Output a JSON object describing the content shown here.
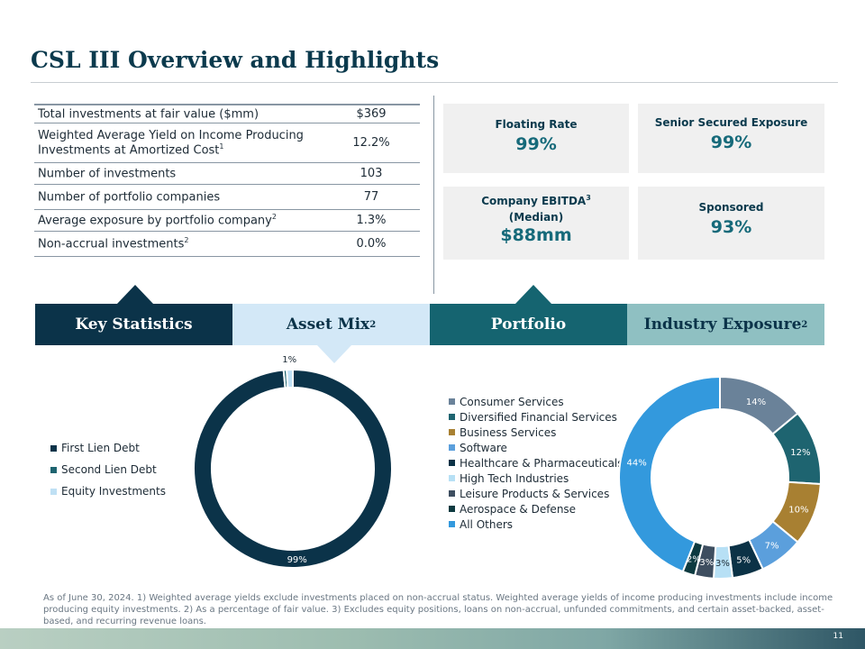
{
  "title": "CSL III Overview and Highlights",
  "stats": [
    {
      "label": "Total investments at fair value ($mm)",
      "sup": "",
      "value": "$369"
    },
    {
      "label": "Weighted Average Yield on Income Producing Investments at Amortized Cost",
      "sup": "1",
      "value": "12.2%"
    },
    {
      "label": "Number of investments",
      "sup": "",
      "value": "103"
    },
    {
      "label": "Number of portfolio companies",
      "sup": "",
      "value": "77"
    },
    {
      "label": "Average exposure by portfolio company",
      "sup": "2",
      "value": "1.3%"
    },
    {
      "label": "Non-accrual investments",
      "sup": "2",
      "value": "0.0%"
    }
  ],
  "highlights": {
    "floating": {
      "label": "Floating Rate",
      "value": "99%"
    },
    "senior": {
      "label": "Senior Secured Exposure",
      "value": "99%"
    },
    "ebitda": {
      "label": "Company EBITDA",
      "sup": "3",
      "label2": "(Median)",
      "value": "$88mm"
    },
    "sponsored": {
      "label": "Sponsored",
      "value": "93%"
    }
  },
  "tabs": [
    {
      "label": "Key Statistics",
      "sup": "",
      "bg": "#0b3349",
      "fg": "#ffffff"
    },
    {
      "label": "Asset Mix",
      "sup": "2",
      "bg": "#d3e8f7",
      "fg": "#0b3349"
    },
    {
      "label": "Portfolio",
      "sup": "",
      "bg": "#156470",
      "fg": "#ffffff"
    },
    {
      "label": "Industry Exposure",
      "sup": "2",
      "bg": "#8fc0c2",
      "fg": "#0b3349"
    }
  ],
  "chart_data": [
    {
      "type": "pie",
      "donut": true,
      "categories": [
        "First Lien Debt",
        "Second Lien Debt",
        "Equity Investments"
      ],
      "values": [
        99,
        0.5,
        1
      ],
      "labels": [
        "99%",
        "",
        "1%"
      ],
      "colors": [
        "#0b3349",
        "#1e6470",
        "#bfe0f4"
      ],
      "legend_position": "left"
    },
    {
      "type": "pie",
      "donut": true,
      "categories": [
        "Consumer Services",
        "Diversified Financial Services",
        "Business Services",
        "Software",
        "Healthcare & Pharmaceuticals",
        "High Tech Industries",
        "Leisure Products & Services",
        "Aerospace & Defense",
        "All Others"
      ],
      "values": [
        14,
        12,
        10,
        7,
        5,
        3,
        3,
        2,
        44
      ],
      "labels": [
        "14%",
        "12%",
        "10%",
        "7%",
        "5%",
        "3%",
        "3%",
        "2%",
        "44%"
      ],
      "colors": [
        "#6a8299",
        "#1e6470",
        "#a88032",
        "#5b9fdc",
        "#0b3246",
        "#b7e0f5",
        "#3e4e60",
        "#0d3a40",
        "#3399dd"
      ],
      "legend_position": "left"
    }
  ],
  "footnote": "As of June 30, 2024. 1) Weighted average yields exclude investments placed on non-accrual status. Weighted average yields of income producing investments include income producing equity investments. 2) As a percentage of fair value. 3) Excludes equity positions, loans on non-accrual, unfunded commitments, and certain asset-backed, asset-based, and recurring revenue loans.",
  "page": "11"
}
